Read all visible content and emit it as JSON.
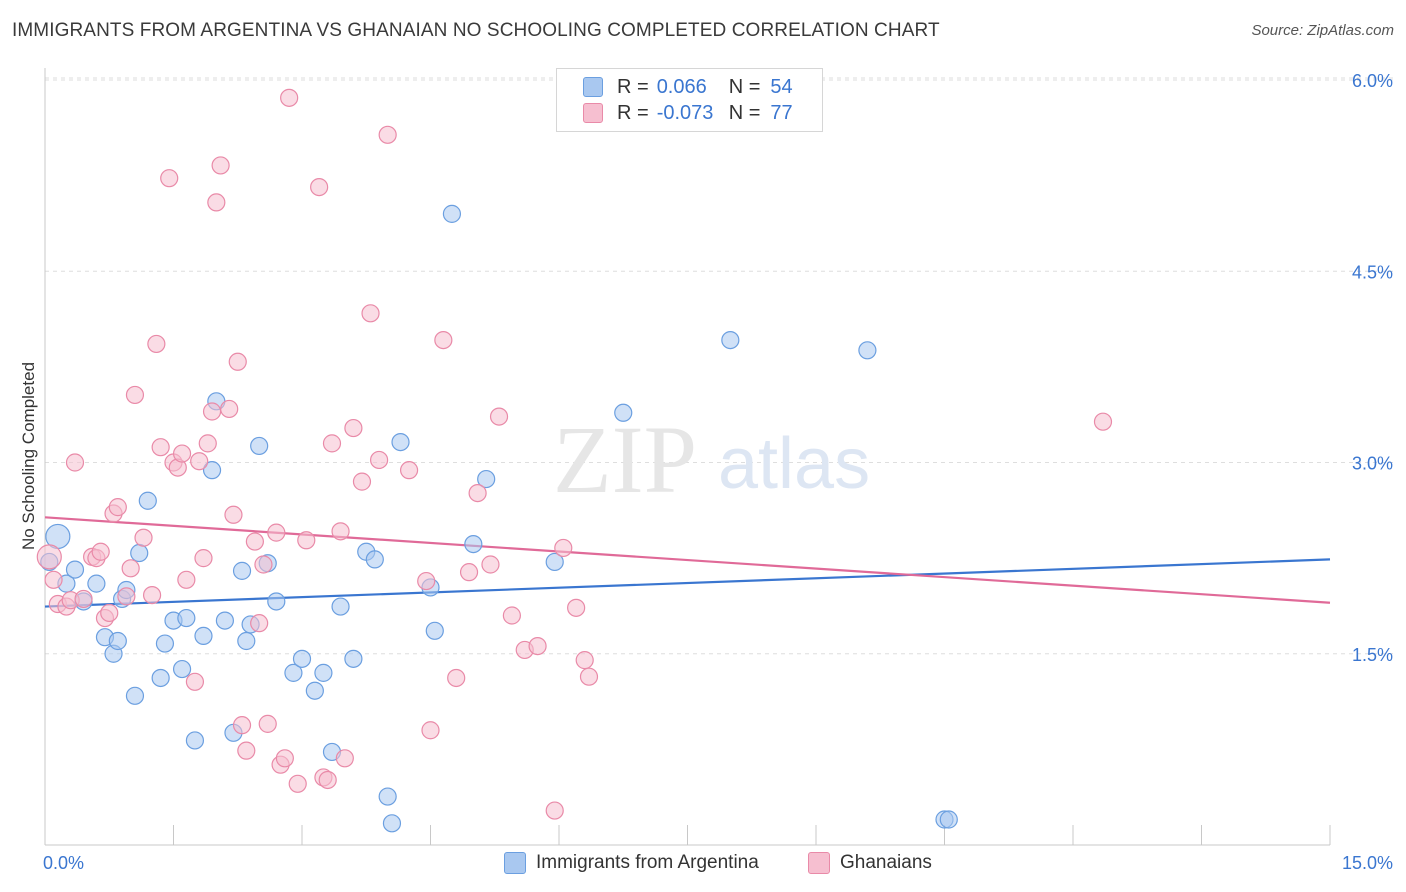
{
  "title": "IMMIGRANTS FROM ARGENTINA VS GHANAIAN NO SCHOOLING COMPLETED CORRELATION CHART",
  "source": "Source: ZipAtlas.com",
  "watermark": {
    "zip": "ZIP",
    "atlas": "atlas"
  },
  "legend": {
    "rows": [
      {
        "r_label": "R =",
        "r_value": "0.066",
        "n_label": "N =",
        "n_value": "54",
        "color": "#a9c8f0",
        "stroke": "#6b9fe0"
      },
      {
        "r_label": "R =",
        "r_value": "-0.073",
        "n_label": "N =",
        "n_value": "77",
        "color": "#f6bfd0",
        "stroke": "#e98aa8"
      }
    ]
  },
  "bottom_legend": [
    {
      "label": "Immigrants from Argentina",
      "color": "#a9c8f0",
      "stroke": "#6b9fe0"
    },
    {
      "label": "Ghanaians",
      "color": "#f6bfd0",
      "stroke": "#e98aa8"
    }
  ],
  "chart_data": {
    "type": "scatter",
    "xlabel": "",
    "ylabel": "No Schooling Completed",
    "xlim": [
      0,
      15
    ],
    "ylim": [
      0,
      6.2
    ],
    "x_tick_labels": {
      "min": "0.0%",
      "max": "15.0%"
    },
    "y_ticks": [
      1.5,
      3.0,
      4.5,
      6.0
    ],
    "y_tick_labels": [
      "1.5%",
      "3.0%",
      "4.5%",
      "6.0%"
    ],
    "grid": "horizontal dashed",
    "series": [
      {
        "name": "Immigrants from Argentina",
        "color": "#6b9fe0",
        "fill": "#a9c8f0",
        "trend": {
          "x": [
            0,
            15
          ],
          "y": [
            1.87,
            2.24
          ]
        },
        "points": [
          [
            0.15,
            2.42
          ],
          [
            0.05,
            2.22
          ],
          [
            0.25,
            2.05
          ],
          [
            0.35,
            2.16
          ],
          [
            0.45,
            1.91
          ],
          [
            0.6,
            2.05
          ],
          [
            0.7,
            1.63
          ],
          [
            0.8,
            1.5
          ],
          [
            0.85,
            1.6
          ],
          [
            0.9,
            1.93
          ],
          [
            0.95,
            2.0
          ],
          [
            1.05,
            1.17
          ],
          [
            1.1,
            2.29
          ],
          [
            1.2,
            2.7
          ],
          [
            1.35,
            1.31
          ],
          [
            1.4,
            1.58
          ],
          [
            1.5,
            1.76
          ],
          [
            1.6,
            1.38
          ],
          [
            1.65,
            1.78
          ],
          [
            1.75,
            0.82
          ],
          [
            1.85,
            1.64
          ],
          [
            1.95,
            2.94
          ],
          [
            2.0,
            3.48
          ],
          [
            2.1,
            1.76
          ],
          [
            2.2,
            0.88
          ],
          [
            2.3,
            2.15
          ],
          [
            2.35,
            1.6
          ],
          [
            2.4,
            1.73
          ],
          [
            2.5,
            3.13
          ],
          [
            2.6,
            2.21
          ],
          [
            2.7,
            1.91
          ],
          [
            2.9,
            1.35
          ],
          [
            3.0,
            1.46
          ],
          [
            3.15,
            1.21
          ],
          [
            3.25,
            1.35
          ],
          [
            3.35,
            0.73
          ],
          [
            3.45,
            1.87
          ],
          [
            3.6,
            1.46
          ],
          [
            3.75,
            2.3
          ],
          [
            3.85,
            2.24
          ],
          [
            4.0,
            0.38
          ],
          [
            4.05,
            0.17
          ],
          [
            4.15,
            3.16
          ],
          [
            4.5,
            2.02
          ],
          [
            4.55,
            1.68
          ],
          [
            4.75,
            4.95
          ],
          [
            5.0,
            2.36
          ],
          [
            5.15,
            2.87
          ],
          [
            5.95,
            2.22
          ],
          [
            6.75,
            3.39
          ],
          [
            8.0,
            3.96
          ],
          [
            9.6,
            3.88
          ],
          [
            10.5,
            0.2
          ],
          [
            10.55,
            0.2
          ]
        ]
      },
      {
        "name": "Ghanaians",
        "color": "#e98aa8",
        "fill": "#f6bfd0",
        "trend": {
          "x": [
            0,
            15
          ],
          "y": [
            2.57,
            1.9
          ]
        },
        "points": [
          [
            0.05,
            2.26
          ],
          [
            0.1,
            2.08
          ],
          [
            0.15,
            1.89
          ],
          [
            0.25,
            1.87
          ],
          [
            0.3,
            1.92
          ],
          [
            0.35,
            3.0
          ],
          [
            0.45,
            1.93
          ],
          [
            0.55,
            2.26
          ],
          [
            0.6,
            2.25
          ],
          [
            0.65,
            2.3
          ],
          [
            0.7,
            1.78
          ],
          [
            0.75,
            1.82
          ],
          [
            0.8,
            2.6
          ],
          [
            0.85,
            2.65
          ],
          [
            0.95,
            1.95
          ],
          [
            1.0,
            2.17
          ],
          [
            1.05,
            3.53
          ],
          [
            1.15,
            2.41
          ],
          [
            1.25,
            1.96
          ],
          [
            1.3,
            3.93
          ],
          [
            1.35,
            3.12
          ],
          [
            1.45,
            5.23
          ],
          [
            1.5,
            3.0
          ],
          [
            1.55,
            2.96
          ],
          [
            1.6,
            3.07
          ],
          [
            1.65,
            2.08
          ],
          [
            1.75,
            1.28
          ],
          [
            1.8,
            3.01
          ],
          [
            1.85,
            2.25
          ],
          [
            1.9,
            3.15
          ],
          [
            1.95,
            3.4
          ],
          [
            2.0,
            5.04
          ],
          [
            2.05,
            5.33
          ],
          [
            2.15,
            3.42
          ],
          [
            2.2,
            2.59
          ],
          [
            2.25,
            3.79
          ],
          [
            2.3,
            0.94
          ],
          [
            2.35,
            0.74
          ],
          [
            2.45,
            2.38
          ],
          [
            2.5,
            1.74
          ],
          [
            2.55,
            2.2
          ],
          [
            2.6,
            0.95
          ],
          [
            2.7,
            2.45
          ],
          [
            2.75,
            0.63
          ],
          [
            2.8,
            0.68
          ],
          [
            2.85,
            5.86
          ],
          [
            2.95,
            0.48
          ],
          [
            3.05,
            2.39
          ],
          [
            3.2,
            5.16
          ],
          [
            3.25,
            0.53
          ],
          [
            3.3,
            0.51
          ],
          [
            3.35,
            3.15
          ],
          [
            3.45,
            2.46
          ],
          [
            3.5,
            0.68
          ],
          [
            3.6,
            3.27
          ],
          [
            3.7,
            2.85
          ],
          [
            3.8,
            4.17
          ],
          [
            3.9,
            3.02
          ],
          [
            4.0,
            5.57
          ],
          [
            4.25,
            2.94
          ],
          [
            4.45,
            2.07
          ],
          [
            4.5,
            0.9
          ],
          [
            4.65,
            3.96
          ],
          [
            4.8,
            1.31
          ],
          [
            4.95,
            2.14
          ],
          [
            5.05,
            2.76
          ],
          [
            5.2,
            2.2
          ],
          [
            5.3,
            3.36
          ],
          [
            5.45,
            1.8
          ],
          [
            5.6,
            1.53
          ],
          [
            5.75,
            1.56
          ],
          [
            5.95,
            0.27
          ],
          [
            6.05,
            2.33
          ],
          [
            6.2,
            1.86
          ],
          [
            6.3,
            1.45
          ],
          [
            6.35,
            1.32
          ],
          [
            12.35,
            3.32
          ]
        ]
      }
    ]
  }
}
